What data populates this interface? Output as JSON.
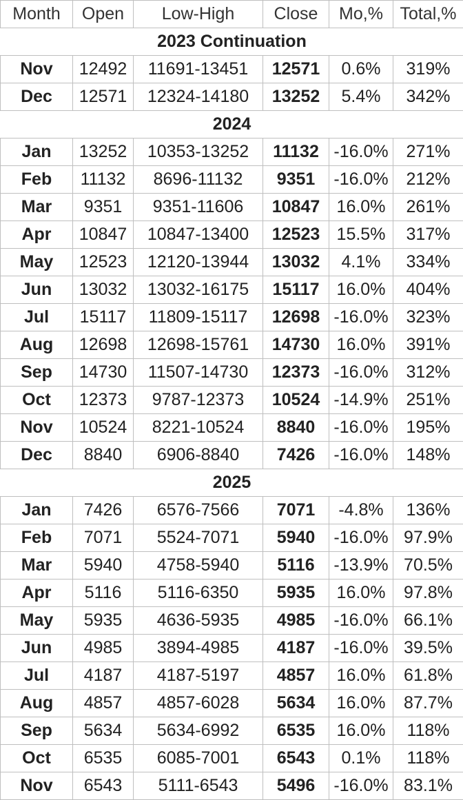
{
  "headers": [
    "Month",
    "Open",
    "Low-High",
    "Close",
    "Mo,%",
    "Total,%"
  ],
  "sections": [
    {
      "title": "2023 Continuation",
      "rows": [
        [
          "Nov",
          "12492",
          "11691-13451",
          "12571",
          "0.6%",
          "319%"
        ],
        [
          "Dec",
          "12571",
          "12324-14180",
          "13252",
          "5.4%",
          "342%"
        ]
      ]
    },
    {
      "title": "2024",
      "rows": [
        [
          "Jan",
          "13252",
          "10353-13252",
          "11132",
          "-16.0%",
          "271%"
        ],
        [
          "Feb",
          "11132",
          "8696-11132",
          "9351",
          "-16.0%",
          "212%"
        ],
        [
          "Mar",
          "9351",
          "9351-11606",
          "10847",
          "16.0%",
          "261%"
        ],
        [
          "Apr",
          "10847",
          "10847-13400",
          "12523",
          "15.5%",
          "317%"
        ],
        [
          "May",
          "12523",
          "12120-13944",
          "13032",
          "4.1%",
          "334%"
        ],
        [
          "Jun",
          "13032",
          "13032-16175",
          "15117",
          "16.0%",
          "404%"
        ],
        [
          "Jul",
          "15117",
          "11809-15117",
          "12698",
          "-16.0%",
          "323%"
        ],
        [
          "Aug",
          "12698",
          "12698-15761",
          "14730",
          "16.0%",
          "391%"
        ],
        [
          "Sep",
          "14730",
          "11507-14730",
          "12373",
          "-16.0%",
          "312%"
        ],
        [
          "Oct",
          "12373",
          "9787-12373",
          "10524",
          "-14.9%",
          "251%"
        ],
        [
          "Nov",
          "10524",
          "8221-10524",
          "8840",
          "-16.0%",
          "195%"
        ],
        [
          "Dec",
          "8840",
          "6906-8840",
          "7426",
          "-16.0%",
          "148%"
        ]
      ]
    },
    {
      "title": "2025",
      "rows": [
        [
          "Jan",
          "7426",
          "6576-7566",
          "7071",
          "-4.8%",
          "136%"
        ],
        [
          "Feb",
          "7071",
          "5524-7071",
          "5940",
          "-16.0%",
          "97.9%"
        ],
        [
          "Mar",
          "5940",
          "4758-5940",
          "5116",
          "-13.9%",
          "70.5%"
        ],
        [
          "Apr",
          "5116",
          "5116-6350",
          "5935",
          "16.0%",
          "97.8%"
        ],
        [
          "May",
          "5935",
          "4636-5935",
          "4985",
          "-16.0%",
          "66.1%"
        ],
        [
          "Jun",
          "4985",
          "3894-4985",
          "4187",
          "-16.0%",
          "39.5%"
        ],
        [
          "Jul",
          "4187",
          "4187-5197",
          "4857",
          "16.0%",
          "61.8%"
        ],
        [
          "Aug",
          "4857",
          "4857-6028",
          "5634",
          "16.0%",
          "87.7%"
        ],
        [
          "Sep",
          "5634",
          "5634-6992",
          "6535",
          "16.0%",
          "118%"
        ],
        [
          "Oct",
          "6535",
          "6085-7001",
          "6543",
          "0.1%",
          "118%"
        ],
        [
          "Nov",
          "6543",
          "5111-6543",
          "5496",
          "-16.0%",
          "83.1%"
        ]
      ]
    }
  ]
}
